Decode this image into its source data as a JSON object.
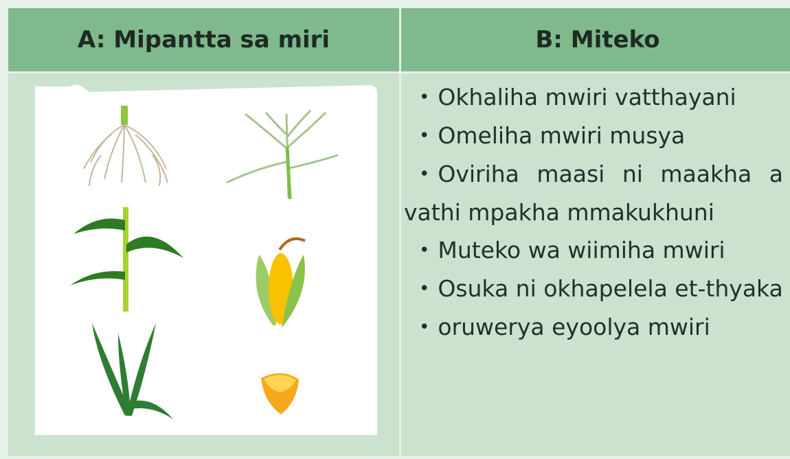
{
  "table": {
    "headers": [
      "A: Mipantta sa miri",
      "B: Miteko"
    ],
    "items": [
      "Okhaliha mwiri vatthayani",
      "Omeliha mwiri musya",
      "Oviriha maasi ni maakha a vathi mpakha mmakukhuni",
      "Muteko wa wiimiha mwiri",
      "Osuka ni okhapelela et-thyaka",
      "oruwerya eyoolya mwiri"
    ]
  }
}
